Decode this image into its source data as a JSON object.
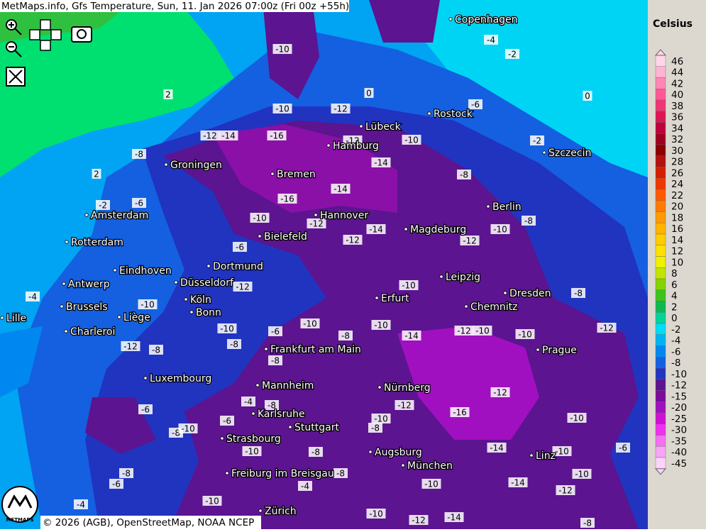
{
  "header": {
    "title": "MetMaps.info, Gfs Temperature, Sun, 11. Jan 2026 07:00z (Fri 00z +55h)"
  },
  "legend": {
    "title": "Celsius",
    "entries": [
      {
        "label": 46,
        "color": "#ffd6e6"
      },
      {
        "label": 44,
        "color": "#ffb4d2"
      },
      {
        "label": 42,
        "color": "#ff86b6"
      },
      {
        "label": 40,
        "color": "#ff5896"
      },
      {
        "label": 38,
        "color": "#f03574"
      },
      {
        "label": 36,
        "color": "#dc1656"
      },
      {
        "label": 34,
        "color": "#c0003e"
      },
      {
        "label": 32,
        "color": "#a00020"
      },
      {
        "label": 30,
        "color": "#8c0000"
      },
      {
        "label": 28,
        "color": "#b41010"
      },
      {
        "label": 26,
        "color": "#d42000"
      },
      {
        "label": 24,
        "color": "#f03800"
      },
      {
        "label": 22,
        "color": "#ff5a00"
      },
      {
        "label": 20,
        "color": "#ff7a00"
      },
      {
        "label": 18,
        "color": "#ff9a00"
      },
      {
        "label": 16,
        "color": "#ffb400"
      },
      {
        "label": 14,
        "color": "#ffcc00"
      },
      {
        "label": 12,
        "color": "#ffe000"
      },
      {
        "label": 10,
        "color": "#f0f000"
      },
      {
        "label": 8,
        "color": "#c4e400"
      },
      {
        "label": 6,
        "color": "#84d400"
      },
      {
        "label": 4,
        "color": "#3cc41c"
      },
      {
        "label": 2,
        "color": "#10b850"
      },
      {
        "label": 0,
        "color": "#00d49a"
      },
      {
        "label": -2,
        "color": "#00dcf4"
      },
      {
        "label": -4,
        "color": "#00b4f4"
      },
      {
        "label": -6,
        "color": "#0088f0"
      },
      {
        "label": -8,
        "color": "#1460e0"
      },
      {
        "label": -10,
        "color": "#2034c0"
      },
      {
        "label": -12,
        "color": "#5c1490"
      },
      {
        "label": -15,
        "color": "#7c0c9c"
      },
      {
        "label": -20,
        "color": "#a010c0"
      },
      {
        "label": -25,
        "color": "#d010d4"
      },
      {
        "label": -30,
        "color": "#f030f0"
      },
      {
        "label": -35,
        "color": "#f470f0"
      },
      {
        "label": -40,
        "color": "#f6a6f4"
      },
      {
        "label": -45,
        "color": "#fad4fa"
      }
    ]
  },
  "cities": [
    "Copenhagen",
    "Rostock",
    "Lübeck",
    "Hamburg",
    "Szczecin",
    "Groningen",
    "Bremen",
    "Berlin",
    "Amsterdam",
    "Hannover",
    "Magdeburg",
    "Bielefeld",
    "Rotterdam",
    "Dortmund",
    "Eindhoven",
    "Leipzig",
    "Antwerp",
    "Düsseldorf",
    "Dresden",
    "Erfurt",
    "Köln",
    "Brussels",
    "Chemnitz",
    "Bonn",
    "Lille",
    "Liège",
    "Charleroi",
    "Prague",
    "Frankfurt am Main",
    "Luxembourg",
    "Nürnberg",
    "Mannheim",
    "Karlsruhe",
    "Stuttgart",
    "Strasbourg",
    "Augsburg",
    "Linz",
    "München",
    "Freiburg im Breisgau",
    "Zürich"
  ],
  "contour_labels": [
    -10,
    -10,
    -12,
    -16,
    -12,
    -14,
    -8,
    -10,
    -12,
    -14,
    -14,
    -16,
    -8,
    -8,
    -10,
    -12,
    -14,
    -12,
    -12,
    -10,
    -6,
    -12,
    -10,
    -10,
    -4,
    -6,
    -2,
    -4,
    0,
    -6,
    -2,
    -8,
    -12,
    -10,
    -10,
    -12,
    -14,
    -10,
    -8,
    -10,
    -6,
    -10,
    -8,
    -8,
    -12,
    -16,
    -12,
    -10,
    -8,
    -10,
    -6,
    -10,
    -14,
    -10,
    -14,
    -12,
    -10,
    -8,
    -8,
    -4,
    -6,
    -8,
    -10,
    -8,
    -6,
    -4,
    -10,
    -10,
    -12,
    -14,
    -10,
    -8,
    -6,
    -4,
    -8,
    -8,
    -12,
    2,
    2,
    0,
    -2
  ],
  "logo": "METMAPS",
  "footer": "© 2026 (AGB), OpenStreetMap, NOAA NCEP"
}
